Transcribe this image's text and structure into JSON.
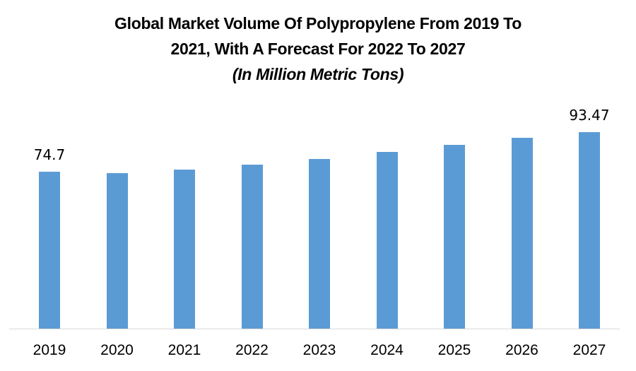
{
  "chart_data": {
    "type": "bar",
    "title": "Global Market Volume Of Polypropylene From 2019 To 2021, With A Forecast For 2022 To 2027",
    "subtitle": "(In Million Metric Tons)",
    "categories": [
      "2019",
      "2020",
      "2021",
      "2022",
      "2023",
      "2024",
      "2025",
      "2026",
      "2027"
    ],
    "values": [
      74.7,
      74.0,
      75.6,
      78.0,
      80.7,
      84.0,
      87.4,
      90.8,
      93.47
    ],
    "data_labels": {
      "2019": "74.7",
      "2027": "93.47"
    },
    "xlabel": "",
    "ylabel": "",
    "ylim": [
      0,
      110
    ],
    "grid": false,
    "legend": null,
    "bar_color": "#5b9bd5"
  },
  "title_line1": "Global Market Volume Of Polypropylene From 2019 To",
  "title_line2": "2021, With A Forecast For 2022 To 2027",
  "title_line3": "(In Million Metric Tons)"
}
